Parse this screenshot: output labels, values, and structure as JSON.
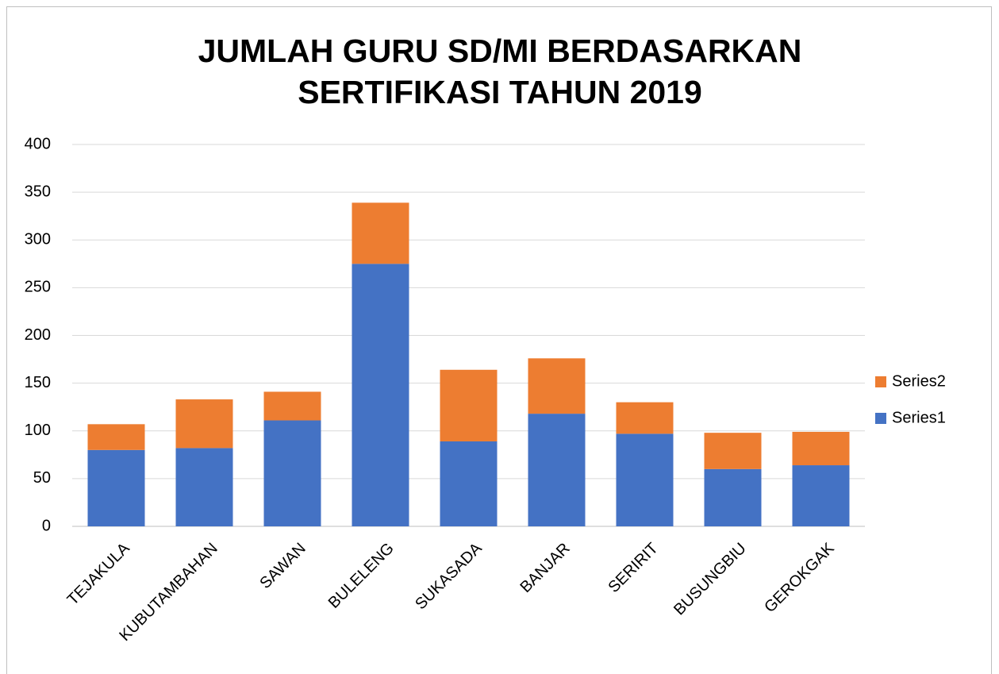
{
  "chart_data": {
    "type": "stacked-bar",
    "title": "JUMLAH GURU SD/MI BERDASARKAN SERTIFIKASI TAHUN 2019",
    "categories": [
      "TEJAKULA",
      "KUBUTAMBAHAN",
      "SAWAN",
      "BULELENG",
      "SUKASADA",
      "BANJAR",
      "SERIRIT",
      "BUSUNGBIU",
      "GEROKGAK"
    ],
    "series": [
      {
        "name": "Series1",
        "color": "#4472c4",
        "values": [
          80,
          82,
          111,
          275,
          89,
          118,
          97,
          60,
          64
        ]
      },
      {
        "name": "Series2",
        "color": "#ed7d31",
        "values": [
          27,
          51,
          30,
          64,
          75,
          58,
          33,
          38,
          35
        ]
      }
    ],
    "ylim": [
      0,
      400
    ],
    "yticks": [
      0,
      50,
      100,
      150,
      200,
      250,
      300,
      350,
      400
    ],
    "grid": true,
    "legend": "right"
  }
}
